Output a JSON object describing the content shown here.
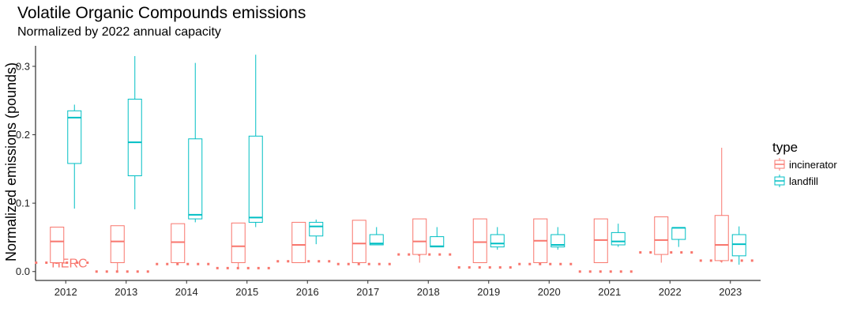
{
  "chart_data": {
    "type": "boxplot",
    "title": "Volatile Organic Compounds emissions",
    "subtitle": "Normalized by 2022 annual capacity",
    "xlabel": "",
    "ylabel": "Normalized emissions (pounds)",
    "ylim": [
      -0.013,
      0.33
    ],
    "y_ticks": [
      0.0,
      0.1,
      0.2,
      0.3
    ],
    "y_tick_labels": [
      "0.0",
      "0.1",
      "0.2",
      "0.3"
    ],
    "categories": [
      "2012",
      "2013",
      "2014",
      "2015",
      "2016",
      "2017",
      "2018",
      "2019",
      "2020",
      "2021",
      "2022",
      "2023"
    ],
    "grid": false,
    "legend": {
      "title": "type",
      "position": "right",
      "entries": [
        {
          "name": "incinerator",
          "color": "#F8766D"
        },
        {
          "name": "landfill",
          "color": "#00BFC4"
        }
      ]
    },
    "series": [
      {
        "name": "incinerator",
        "color": "#F8766D",
        "boxes": [
          {
            "min": 0.013,
            "q1": 0.013,
            "median": 0.044,
            "q3": 0.065,
            "max": 0.065
          },
          {
            "min": 0.0,
            "q1": 0.013,
            "median": 0.044,
            "q3": 0.067,
            "max": 0.067
          },
          {
            "min": 0.013,
            "q1": 0.013,
            "median": 0.043,
            "q3": 0.07,
            "max": 0.07
          },
          {
            "min": 0.005,
            "q1": 0.013,
            "median": 0.037,
            "q3": 0.071,
            "max": 0.071
          },
          {
            "min": 0.013,
            "q1": 0.013,
            "median": 0.039,
            "q3": 0.072,
            "max": 0.072
          },
          {
            "min": 0.013,
            "q1": 0.013,
            "median": 0.041,
            "q3": 0.075,
            "max": 0.075
          },
          {
            "min": 0.013,
            "q1": 0.025,
            "median": 0.044,
            "q3": 0.077,
            "max": 0.077
          },
          {
            "min": 0.013,
            "q1": 0.013,
            "median": 0.043,
            "q3": 0.077,
            "max": 0.077
          },
          {
            "min": 0.013,
            "q1": 0.013,
            "median": 0.045,
            "q3": 0.077,
            "max": 0.077
          },
          {
            "min": 0.013,
            "q1": 0.013,
            "median": 0.046,
            "q3": 0.077,
            "max": 0.077
          },
          {
            "min": 0.013,
            "q1": 0.025,
            "median": 0.046,
            "q3": 0.08,
            "max": 0.08
          },
          {
            "min": 0.013,
            "q1": 0.016,
            "median": 0.039,
            "q3": 0.082,
            "max": 0.181
          }
        ]
      },
      {
        "name": "landfill",
        "color": "#00BFC4",
        "boxes": [
          {
            "min": 0.092,
            "q1": 0.158,
            "median": 0.225,
            "q3": 0.235,
            "max": 0.244
          },
          {
            "min": 0.091,
            "q1": 0.14,
            "median": 0.189,
            "q3": 0.252,
            "max": 0.315
          },
          {
            "min": 0.072,
            "q1": 0.077,
            "median": 0.083,
            "q3": 0.194,
            "max": 0.305
          },
          {
            "min": 0.065,
            "q1": 0.072,
            "median": 0.079,
            "q3": 0.198,
            "max": 0.317
          },
          {
            "min": 0.04,
            "q1": 0.052,
            "median": 0.066,
            "q3": 0.072,
            "max": 0.076
          },
          {
            "min": 0.039,
            "q1": 0.039,
            "median": 0.041,
            "q3": 0.054,
            "max": 0.065
          },
          {
            "min": 0.036,
            "q1": 0.036,
            "median": 0.037,
            "q3": 0.051,
            "max": 0.065
          },
          {
            "min": 0.032,
            "q1": 0.036,
            "median": 0.041,
            "q3": 0.054,
            "max": 0.065
          },
          {
            "min": 0.032,
            "q1": 0.036,
            "median": 0.039,
            "q3": 0.054,
            "max": 0.065
          },
          {
            "min": 0.036,
            "q1": 0.039,
            "median": 0.044,
            "q3": 0.057,
            "max": 0.07
          },
          {
            "min": 0.036,
            "q1": 0.047,
            "median": 0.064,
            "q3": 0.064,
            "max": 0.064
          },
          {
            "min": 0.01,
            "q1": 0.023,
            "median": 0.04,
            "q3": 0.054,
            "max": 0.066
          }
        ]
      }
    ],
    "reference_line": {
      "label": "HERC",
      "color": "#F8766D",
      "style": "dotted",
      "values": [
        0.013,
        0.0,
        0.011,
        0.005,
        0.015,
        0.011,
        0.025,
        0.006,
        0.011,
        0.0,
        0.028,
        0.016
      ]
    }
  }
}
